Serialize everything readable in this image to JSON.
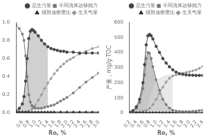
{
  "chart_data": [
    {
      "type": "line",
      "xlabel": "Ro, %",
      "xlim": [
        0.4,
        3.0
      ],
      "ylim": [
        0,
        1.0
      ],
      "xticks": [
        0.6,
        0.8,
        {
          "value": 1,
          "label": "1.0"
        },
        1.2,
        1.4,
        1.6,
        1.8,
        {
          "value": 2,
          "label": "2.0"
        },
        2.2,
        2.4,
        2.6,
        2.8,
        {
          "value": 3,
          "label": "3.0"
        }
      ],
      "yticks": [
        {
          "value": 0,
          "label": "0.0"
        },
        0.2,
        0.4,
        0.6,
        0.8,
        {
          "value": 1,
          "label": "1.0"
        }
      ],
      "grid": false,
      "legend": "upper right",
      "series": [
        {
          "name": "总生污量",
          "color": "#444444",
          "marker": "circle",
          "x": [
            0.4,
            0.5,
            0.6,
            0.65,
            0.7,
            0.75,
            0.8,
            0.85,
            0.9,
            0.95,
            1.0,
            1.1,
            1.2,
            1.3,
            1.4,
            1.5,
            1.6,
            1.7,
            1.8,
            1.9,
            2.0,
            2.2,
            2.4,
            2.6,
            2.8,
            3.0
          ],
          "values": [
            0.02,
            0.05,
            0.1,
            0.18,
            0.35,
            0.6,
            0.82,
            0.9,
            0.92,
            0.91,
            0.89,
            0.85,
            0.8,
            0.76,
            0.73,
            0.71,
            0.7,
            0.69,
            0.68,
            0.68,
            0.67,
            0.67,
            0.66,
            0.66,
            0.66,
            0.66
          ]
        },
        {
          "name": "不同流体运移能力",
          "color": "#777777",
          "marker": "square",
          "x": [
            0.4,
            0.5,
            0.6,
            0.65,
            0.7,
            0.75,
            0.8,
            0.85,
            0.9,
            0.95,
            1.0,
            1.1,
            1.2,
            1.3,
            1.4,
            1.5,
            1.6,
            1.7,
            1.8,
            1.9,
            2.0,
            2.2,
            2.4,
            2.6,
            2.8,
            3.0
          ],
          "values": [
            0.97,
            0.93,
            0.87,
            0.8,
            0.63,
            0.4,
            0.2,
            0.12,
            0.08,
            0.06,
            0.05,
            0.05,
            0.05,
            0.06,
            0.07,
            0.08,
            0.09,
            0.11,
            0.13,
            0.15,
            0.17,
            0.22,
            0.28,
            0.34,
            0.39,
            0.44
          ]
        },
        {
          "name": "残留油密度比",
          "color": "#222222",
          "marker": "triangle",
          "x": [
            0.4,
            0.5,
            0.6,
            0.7,
            0.8,
            0.9,
            1.0,
            1.1,
            1.2,
            1.3,
            1.4,
            1.5,
            1.6,
            1.8,
            2.0,
            2.2,
            2.4,
            2.6,
            2.8,
            3.0
          ],
          "values": [
            0.01,
            0.01,
            0.01,
            0.01,
            0.01,
            0.01,
            0.01,
            0.01,
            0.01,
            0.01,
            0.01,
            0.01,
            0.01,
            0.01,
            0.01,
            0.01,
            0.01,
            0.01,
            0.01,
            0.01
          ]
        },
        {
          "name": "生天气量",
          "color": "#999999",
          "marker": "diamond",
          "x": [
            0.4,
            0.5,
            0.6,
            0.7,
            0.8,
            0.9,
            1.0,
            1.1,
            1.2,
            1.3,
            1.4,
            1.5,
            1.6,
            1.7,
            1.8,
            1.9,
            2.0,
            2.1,
            2.2,
            2.4,
            2.6,
            2.8,
            3.0
          ],
          "values": [
            0.01,
            0.01,
            0.01,
            0.01,
            0.02,
            0.04,
            0.08,
            0.14,
            0.2,
            0.27,
            0.33,
            0.38,
            0.43,
            0.47,
            0.51,
            0.54,
            0.57,
            0.59,
            0.61,
            0.65,
            0.68,
            0.71,
            0.73
          ]
        }
      ],
      "shades": [
        {
          "color": "#aaaaaa",
          "x": [
            0.4,
            0.5,
            0.6,
            0.65,
            0.7,
            0.75,
            0.8,
            0.85,
            0.9,
            0.95,
            1.0,
            1.05,
            1.1,
            1.15,
            1.2,
            1.25,
            1.3,
            1.35,
            1.4
          ],
          "top": [
            0.02,
            0.05,
            0.1,
            0.18,
            0.35,
            0.6,
            0.82,
            0.9,
            0.92,
            0.91,
            0.89,
            0.87,
            0.85,
            0.83,
            0.8,
            0.78,
            0.76,
            0.74,
            0.73
          ],
          "bottom": [
            0.01,
            0.01,
            0.01,
            0.01,
            0.01,
            0.02,
            0.02,
            0.04,
            0.04,
            0.05,
            0.05,
            0.05,
            0.05,
            0.05,
            0.05,
            0.06,
            0.06,
            0.07,
            0.07
          ]
        }
      ]
    },
    {
      "type": "line",
      "xlabel": "Ro, %",
      "ylabel": "产量，mg/g·TOC",
      "xlim": [
        0.2,
        2.4
      ],
      "ylim": [
        0,
        600
      ],
      "xticks": [
        0.2,
        0.4,
        0.6,
        0.8,
        {
          "value": 1,
          "label": "1.0"
        },
        1.2,
        1.4,
        1.6,
        1.8,
        {
          "value": 2,
          "label": "2.0"
        },
        2.2,
        2.4
      ],
      "yticks": [
        0,
        100,
        200,
        300,
        400,
        500,
        600
      ],
      "grid": false,
      "legend": "upper right",
      "series": [
        {
          "name": "总生污量",
          "color": "#444444",
          "marker": "circle",
          "x": [
            0.2,
            0.3,
            0.4,
            0.5,
            0.6,
            0.65,
            0.7,
            0.75,
            0.8,
            0.85,
            0.9,
            1.0,
            1.1,
            1.2,
            1.3,
            1.4,
            1.5,
            1.6,
            1.7,
            1.8,
            1.9,
            2.0,
            2.1,
            2.2,
            2.3,
            2.4
          ],
          "values": [
            5,
            15,
            40,
            90,
            200,
            320,
            450,
            510,
            520,
            510,
            490,
            440,
            400,
            360,
            330,
            305,
            285,
            270,
            260,
            255,
            252,
            250,
            249,
            248,
            248,
            248
          ]
        },
        {
          "name": "不同流体运移能力",
          "color": "#777777",
          "marker": "square",
          "x": [
            0.2,
            0.3,
            0.4,
            0.5,
            0.6,
            0.65,
            0.7,
            0.75,
            0.8,
            0.85,
            0.9,
            1.0,
            1.1,
            1.2,
            1.3,
            1.4,
            1.5,
            1.6,
            1.7,
            1.8,
            1.9,
            2.0,
            2.1,
            2.2,
            2.3,
            2.4
          ],
          "values": [
            3,
            10,
            30,
            70,
            160,
            250,
            360,
            400,
            395,
            360,
            305,
            220,
            150,
            90,
            55,
            32,
            18,
            12,
            10,
            9,
            9,
            9,
            10,
            12,
            15,
            18
          ]
        },
        {
          "name": "残留油密度比",
          "color": "#222222",
          "marker": "triangle",
          "x": [
            0.2,
            0.3,
            0.4,
            0.5,
            0.6,
            0.7,
            0.8,
            0.9,
            1.0,
            1.1,
            1.2,
            1.3,
            1.4,
            1.5,
            1.6,
            1.8,
            2.0,
            2.2,
            2.4
          ],
          "values": [
            2,
            2,
            2,
            2,
            2,
            2,
            2,
            2,
            2,
            2,
            2,
            2,
            2,
            2,
            2,
            2,
            2,
            2,
            2
          ]
        },
        {
          "name": "生天气量",
          "color": "#999999",
          "marker": "diamond",
          "x": [
            0.2,
            0.3,
            0.4,
            0.5,
            0.6,
            0.7,
            0.8,
            0.9,
            1.0,
            1.1,
            1.2,
            1.3,
            1.4,
            1.5,
            1.6,
            1.7,
            1.8,
            1.9,
            2.0,
            2.1,
            2.2,
            2.3,
            2.4
          ],
          "values": [
            1,
            2,
            3,
            5,
            10,
            18,
            30,
            55,
            90,
            130,
            170,
            205,
            230,
            245,
            252,
            258,
            263,
            268,
            272,
            278,
            285,
            295,
            308
          ]
        }
      ],
      "shades": [
        {
          "color": "#aaaaaa",
          "x": [
            0.3,
            0.4,
            0.5,
            0.6,
            0.65,
            0.7,
            0.75,
            0.8,
            0.85,
            0.9,
            1.0,
            1.1,
            1.2,
            1.3,
            1.4,
            1.5
          ],
          "top": [
            10,
            30,
            70,
            160,
            250,
            360,
            400,
            395,
            360,
            305,
            220,
            150,
            90,
            55,
            32,
            18
          ],
          "bottom": [
            2,
            2,
            2,
            2,
            2,
            2,
            2,
            2,
            2,
            2,
            2,
            2,
            2,
            2,
            2,
            2
          ]
        },
        {
          "color": "#cccccc",
          "x": [
            0.3,
            0.4,
            0.5,
            0.6,
            0.65,
            0.7,
            0.75,
            0.8,
            0.85,
            0.9,
            1.0,
            1.1,
            1.2,
            1.3,
            1.4,
            1.5
          ],
          "top": [
            10,
            30,
            70,
            160,
            250,
            360,
            400,
            395,
            360,
            305,
            220,
            150,
            90,
            55,
            32,
            18
          ],
          "bottom": [
            1,
            3,
            5,
            10,
            18,
            30,
            55,
            90,
            130,
            170,
            205,
            230,
            245,
            252,
            252,
            252
          ]
        }
      ]
    }
  ]
}
